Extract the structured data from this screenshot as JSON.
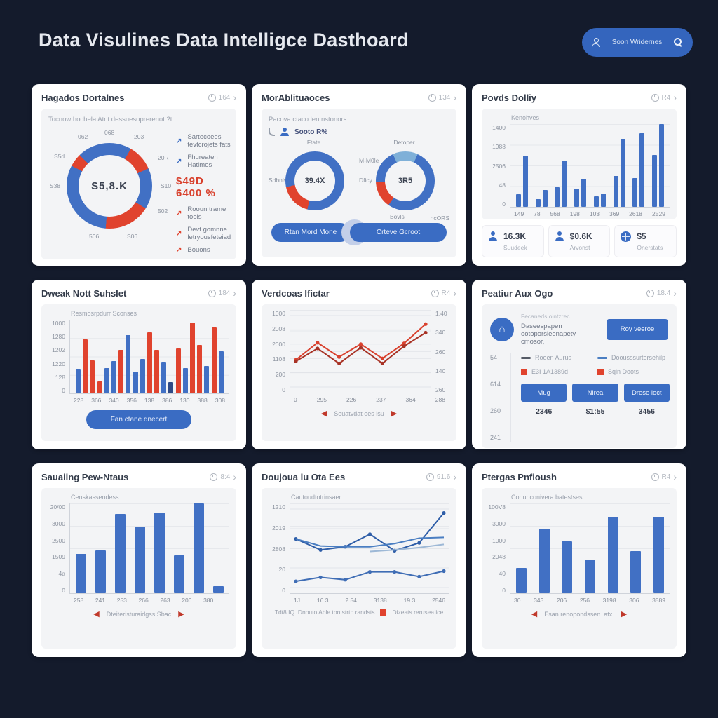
{
  "page": {
    "title": "Data Visulines Data Intelligce Dasthoard",
    "search": {
      "label": "Soon Wridernes"
    }
  },
  "colors": {
    "blue": "#4170c4",
    "red": "#e0432e",
    "navy": "#2f4a86"
  },
  "cards": {
    "c1": {
      "title": "Hagados Dortalnes",
      "meta": "164",
      "subtitle": "Tocnow hochela Atnt dessuesoprerenot ?t",
      "donut": {
        "center": "S5,8.K",
        "labels": [
          "068",
          "203",
          "20R",
          "S10",
          "502",
          "S06",
          "506",
          "S38",
          "S5d",
          "062"
        ],
        "segments": [
          {
            "f": 0,
            "t": 30,
            "c": "#4170c4"
          },
          {
            "f": 30,
            "t": 66,
            "c": "#e0432e"
          },
          {
            "f": 66,
            "t": 122,
            "c": "#4170c4"
          },
          {
            "f": 122,
            "t": 185,
            "c": "#e0432e"
          },
          {
            "f": 185,
            "t": 298,
            "c": "#4170c4"
          },
          {
            "f": 298,
            "t": 316,
            "c": "#e0432e"
          },
          {
            "f": 316,
            "t": 360,
            "c": "#4170c4"
          }
        ]
      },
      "big_value": "$49D 6400 %",
      "legend": [
        {
          "color": "#3a6cc3",
          "label": "Sartecoees tevtcrojets fats"
        },
        {
          "color": "#3a6cc3",
          "label": "Fhureaten Hatimes"
        },
        {
          "color": "#e0432e",
          "label": "Rooun trame tools"
        },
        {
          "color": "#e0432e",
          "label": "Devt gomnne letryousfeteiad"
        },
        {
          "color": "#e0432e",
          "label": "Bouons"
        }
      ]
    },
    "c2": {
      "title": "MorAblituaoces",
      "meta": "134",
      "subtitle": "Pacova ctaco lentnstonors",
      "stat_row": {
        "label": "Sooto R%"
      },
      "donut1": {
        "center": "39.4X",
        "top_label": "Ftate",
        "left_label": "Sdbnls",
        "segments": [
          {
            "f": 0,
            "t": 195,
            "c": "#4170c4"
          },
          {
            "f": 195,
            "t": 258,
            "c": "#e0432e"
          },
          {
            "f": 258,
            "t": 360,
            "c": "#4170c4"
          }
        ]
      },
      "donut2": {
        "center": "3R5",
        "top_label": "Detoper",
        "upper_left_label": "M-M0le",
        "left_label": "Dficy",
        "bottom_label": "Bovls",
        "bottom_right_label": "ncORS",
        "segments": [
          {
            "f": 0,
            "t": 25,
            "c": "#7fb0d8"
          },
          {
            "f": 25,
            "t": 215,
            "c": "#4170c4"
          },
          {
            "f": 215,
            "t": 268,
            "c": "#e0432e"
          },
          {
            "f": 268,
            "t": 335,
            "c": "#4170c4"
          },
          {
            "f": 335,
            "t": 360,
            "c": "#7fb0d8"
          }
        ]
      },
      "button1": "Rtan Mord Mone",
      "button2": "Crteve Gcroot"
    },
    "c3": {
      "title": "Povds Dolliy",
      "meta": "R4",
      "chart": {
        "type": "pairbar",
        "label": "Kenohves",
        "y": [
          "1400",
          "1988",
          "2506",
          "48",
          "0"
        ],
        "x": [
          "149",
          "78",
          "568",
          "198",
          "103",
          "369",
          "2618",
          "2529"
        ],
        "pairs": [
          [
            15,
            62
          ],
          [
            9,
            20
          ],
          [
            24,
            56
          ],
          [
            22,
            34
          ],
          [
            13,
            16
          ],
          [
            37,
            82
          ],
          [
            35,
            89
          ],
          [
            63,
            100
          ]
        ]
      },
      "tiles": [
        {
          "value": "16.3K",
          "label": "Suudeek"
        },
        {
          "value": "$0.6K",
          "label": "Arvonst"
        },
        {
          "value": "$5",
          "label": "Onerstats"
        }
      ]
    },
    "c4": {
      "title": "Dweak Nott Suhslet",
      "meta": "184",
      "chart": {
        "type": "colorbar",
        "label": "Resmosrpdurr Sconses",
        "y": [
          "1000",
          "1280",
          "1202",
          "1220",
          "128",
          "0"
        ],
        "x": [
          "228",
          "366",
          "340",
          "356",
          "138",
          "386",
          "130",
          "388",
          "308"
        ],
        "bars": [
          {
            "v": 33,
            "c": "b"
          },
          {
            "v": 73,
            "c": "r"
          },
          {
            "v": 45,
            "c": "r"
          },
          {
            "v": 16,
            "c": "r"
          },
          {
            "v": 34,
            "c": "b"
          },
          {
            "v": 44,
            "c": "b"
          },
          {
            "v": 59,
            "c": "r"
          },
          {
            "v": 79,
            "c": "b"
          },
          {
            "v": 30,
            "c": "b"
          },
          {
            "v": 47,
            "c": "b"
          },
          {
            "v": 83,
            "c": "r"
          },
          {
            "v": 59,
            "c": "r"
          },
          {
            "v": 43,
            "c": "b"
          },
          {
            "v": 15,
            "c": "n"
          },
          {
            "v": 61,
            "c": "r"
          },
          {
            "v": 34,
            "c": "b"
          },
          {
            "v": 96,
            "c": "r"
          },
          {
            "v": 66,
            "c": "r"
          },
          {
            "v": 37,
            "c": "b"
          },
          {
            "v": 90,
            "c": "r"
          },
          {
            "v": 57,
            "c": "b"
          }
        ]
      },
      "button": "Fan ctane dnecert"
    },
    "c5": {
      "title": "Verdcoas Ifictar",
      "meta": "R4",
      "chart": {
        "type": "lines",
        "label": "",
        "yl": [
          "1000",
          "2008",
          "2000",
          "1108",
          "200",
          "0"
        ],
        "yr": [
          "1.40",
          "340",
          "260",
          "140",
          "260"
        ],
        "x": [
          "0",
          "295",
          "226",
          "237",
          "364",
          "288"
        ],
        "series": [
          {
            "color": "#d9412e",
            "markers": true,
            "values": [
              38,
              62,
              42,
              60,
              40,
              61,
              88
            ]
          },
          {
            "color": "#a83326",
            "markers": true,
            "values": [
              36,
              54,
              33,
              55,
              33,
              57,
              76
            ]
          }
        ]
      },
      "footer": "Seuatvdat oes isu"
    },
    "c6": {
      "title": "Peatiur Aux Ogo",
      "meta": "18.4",
      "panel": {
        "small": "Fecaneds ointzrec",
        "text": "Daseespapen ootoporsleenapety cmosor,",
        "button": "Roy veeroe"
      },
      "axis": [
        "54",
        "614",
        "260",
        "241"
      ],
      "legend": [
        {
          "type": "line",
          "color": "#555b66",
          "label": "Rooen Aurus"
        },
        {
          "type": "line",
          "color": "#4a7ec2",
          "label": "Doousssurtersehilp"
        },
        {
          "type": "square",
          "color": "#e0432e",
          "label": "E3I 1A1389d"
        },
        {
          "type": "square",
          "color": "#e0432e",
          "label": "Sqln Doots"
        }
      ],
      "buttons": [
        {
          "label": "Mug",
          "value": "2346"
        },
        {
          "label": "Nirea",
          "value": "$1:55"
        },
        {
          "label": "Drese loct",
          "value": "3456"
        }
      ]
    },
    "c7": {
      "title": "Sauaiing Pew-Ntaus",
      "meta": "8:4",
      "chart": {
        "type": "bar",
        "label": "Censkassendess",
        "y": [
          "20/00",
          "3000",
          "2500",
          "1509",
          "4a",
          "0"
        ],
        "x": [
          "258",
          "241",
          "253",
          "266",
          "263",
          "206",
          "380",
          ""
        ],
        "values": [
          44,
          48,
          88,
          74,
          90,
          42,
          100,
          8
        ]
      },
      "footer": "Dteiteristuraidgss Sbac"
    },
    "c8": {
      "title": "Doujoua lu Ota Ees",
      "meta": "91.6",
      "chart": {
        "type": "lines",
        "label": "Cautoudtotrinsaer",
        "yl": [
          "1210",
          "2019",
          "2808",
          "20",
          "0"
        ],
        "x": [
          "1J",
          "16.3",
          "2.54",
          "3138",
          "19.3",
          "2546"
        ],
        "series": [
          {
            "color": "#2f5ea8",
            "markers": true,
            "values": [
              62,
              48,
              52,
              68,
              47,
              57,
              95
            ]
          },
          {
            "color": "#4a7ec2",
            "markers": false,
            "values": [
              62,
              53,
              52,
              52,
              56,
              63,
              64
            ]
          },
          {
            "color": "#9db8d6",
            "markers": false,
            "values": [
              null,
              null,
              null,
              46,
              48,
              51,
              55
            ]
          },
          {
            "color": "#3f6db5",
            "markers": true,
            "values": [
              8,
              13,
              10,
              20,
              20,
              14,
              21
            ]
          }
        ]
      },
      "footer_text": "Tdt8 IQ tDnouto Able tontstrtp randsts",
      "footer_legend": "Dizeats rerusea ice"
    },
    "c9": {
      "title": "Ptergas Pnfioush",
      "meta": "R4",
      "chart": {
        "type": "bar",
        "label": "Conunconivera batestses",
        "y": [
          "100V8",
          "3000",
          "1000",
          "2048",
          "40",
          "0"
        ],
        "x": [
          "30",
          "343",
          "206",
          "256",
          "3198",
          "306",
          "3589"
        ],
        "values": [
          28,
          72,
          58,
          37,
          85,
          47,
          85
        ]
      },
      "footer": "Esan renopondssen. atx."
    }
  }
}
